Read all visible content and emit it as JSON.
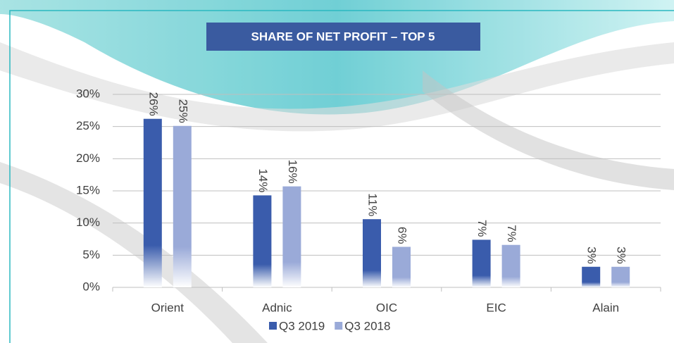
{
  "chart_data": {
    "type": "bar",
    "title": "SHARE OF NET PROFIT – TOP 5",
    "categories": [
      "Orient",
      "Adnic",
      "OIC",
      "EIC",
      "Alain"
    ],
    "series": [
      {
        "name": "Q3 2019",
        "color": "#3a5cac",
        "values": [
          26.2,
          14.3,
          10.6,
          7.4,
          3.2
        ],
        "value_labels": [
          "26%",
          "14%",
          "11%",
          "7%",
          "3%"
        ]
      },
      {
        "name": "Q3 2018",
        "color": "#9aaad8",
        "values": [
          25.1,
          15.7,
          6.3,
          6.6,
          3.2
        ],
        "value_labels": [
          "25%",
          "16%",
          "6%",
          "7%",
          "3%"
        ]
      }
    ],
    "ylim": [
      0,
      30
    ],
    "yticks": [
      {
        "value": 0,
        "label": "0%"
      },
      {
        "value": 5,
        "label": "5%"
      },
      {
        "value": 10,
        "label": "10%"
      },
      {
        "value": 15,
        "label": "15%"
      },
      {
        "value": 20,
        "label": "20%"
      },
      {
        "value": 25,
        "label": "25%"
      },
      {
        "value": 30,
        "label": "30%"
      }
    ],
    "grid": true,
    "legend": "bottom"
  }
}
